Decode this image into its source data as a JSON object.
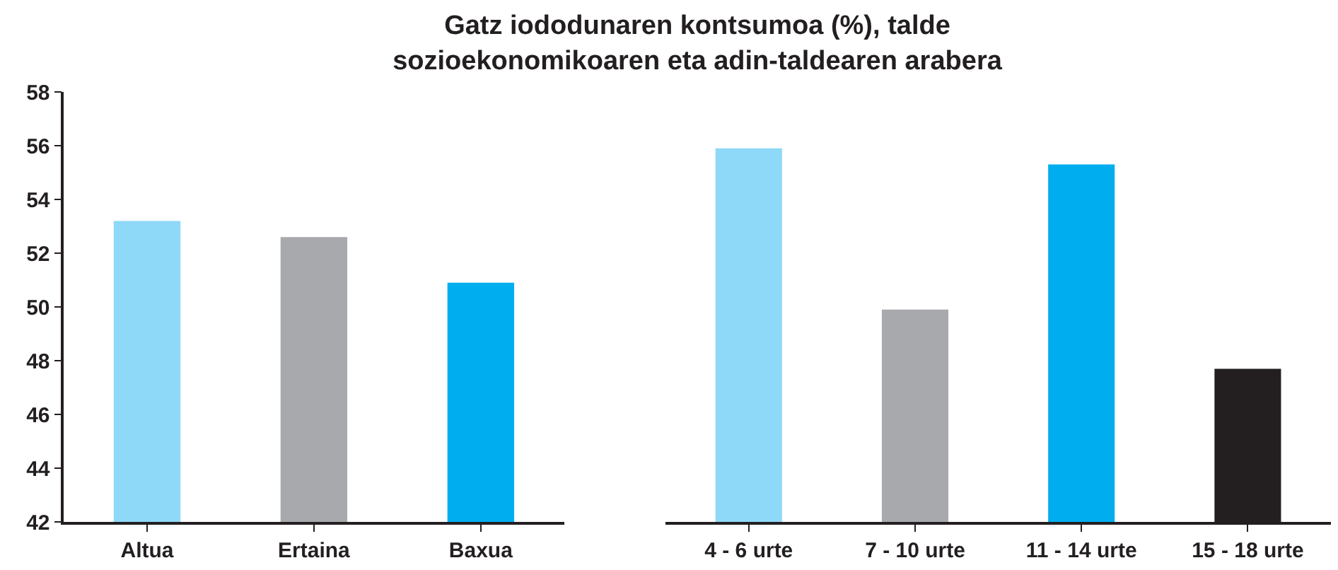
{
  "chart_data": [
    {
      "type": "bar",
      "title": "Gatz iododunaren kontsumoa (%), talde\nsozioekonomikoaren eta adin-taldearen arabera",
      "categories": [
        "Altua",
        "Ertaina",
        "Baxua"
      ],
      "values": [
        53.2,
        52.6,
        50.9
      ],
      "colors": [
        "#8ed8f8",
        "#a7a9ac",
        "#00aeef"
      ],
      "ylim": [
        42,
        58
      ],
      "yticks": [
        42,
        44,
        46,
        48,
        50,
        52,
        54,
        56,
        58
      ]
    },
    {
      "type": "bar",
      "categories": [
        "4 - 6 urte",
        "7 - 10 urte",
        "11 - 14 urte",
        "15 - 18 urte"
      ],
      "values": [
        55.9,
        49.9,
        55.3,
        47.7
      ],
      "colors": [
        "#8ed8f8",
        "#a7a9ac",
        "#00aeef",
        "#231f20"
      ],
      "ylim": [
        42,
        58
      ],
      "yticks": [
        42,
        44,
        46,
        48,
        50,
        52,
        54,
        56,
        58
      ],
      "tick_labels": "x"
    }
  ]
}
